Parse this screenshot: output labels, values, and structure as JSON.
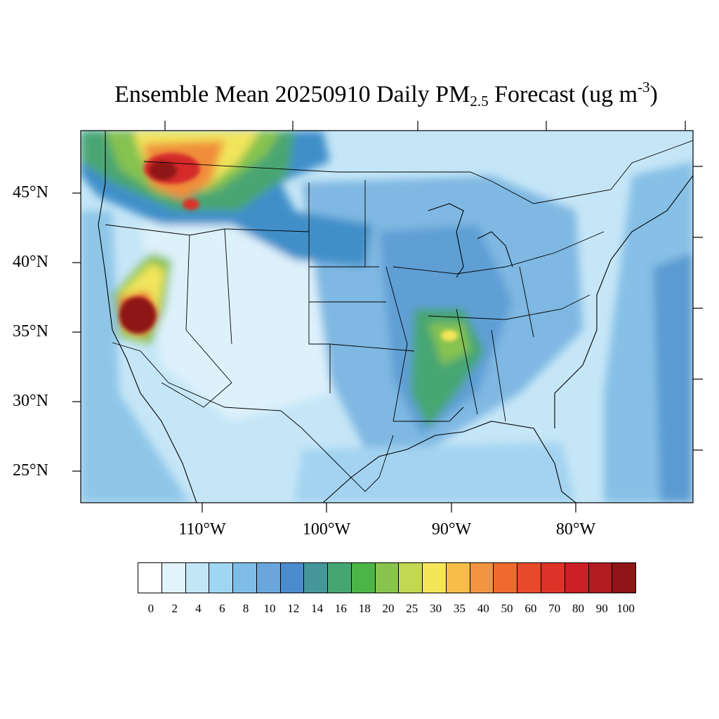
{
  "title": {
    "main": "Ensemble Mean 20250910 Daily PM",
    "sub": "2.5",
    "rest": " Forecast (ug m",
    "sup": "-3",
    "close": ")"
  },
  "map": {
    "lat_labels": [
      "45°N",
      "40°N",
      "35°N",
      "30°N",
      "25°N"
    ],
    "lon_labels": [
      "110°W",
      "100°W",
      "90°W",
      "80°W"
    ],
    "background_color": "#c5e6f7"
  },
  "legend": {
    "levels": [
      "0",
      "2",
      "4",
      "6",
      "8",
      "10",
      "12",
      "14",
      "16",
      "18",
      "20",
      "25",
      "30",
      "35",
      "40",
      "50",
      "60",
      "70",
      "80",
      "90",
      "100"
    ],
    "colors": [
      "#ffffff",
      "#e1f3fb",
      "#c3e6f7",
      "#9fd6f2",
      "#7fbde6",
      "#6aa6da",
      "#4a8ccc",
      "#45979b",
      "#46a672",
      "#4db548",
      "#88c34e",
      "#c2d752",
      "#f5e659",
      "#f6bd48",
      "#f39540",
      "#ee6a2d",
      "#e74a2b",
      "#dc3328",
      "#ca2026",
      "#b21c22",
      "#8f1518"
    ]
  }
}
